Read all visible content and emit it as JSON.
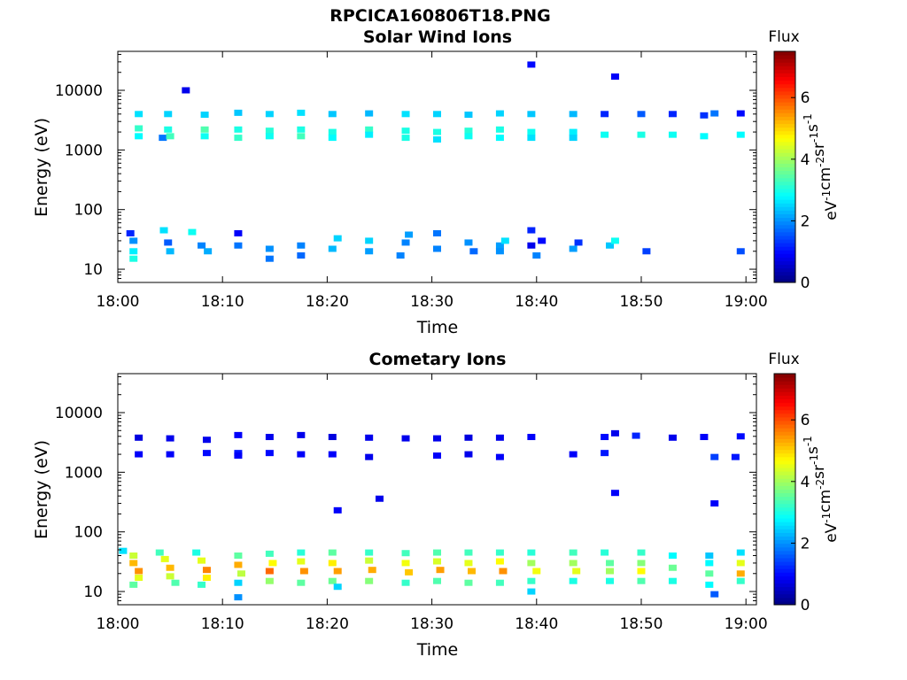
{
  "title": "RPCICA160806T18.PNG",
  "colors": {
    "axis": "#000000",
    "background": "#ffffff"
  },
  "chart_data": [
    {
      "type": "heatmap",
      "title": "Solar Wind Ions",
      "xlabel": "Time",
      "ylabel": "Energy (eV)",
      "x_ticks": [
        "18:00",
        "18:10",
        "18:20",
        "18:30",
        "18:40",
        "18:50",
        "19:00"
      ],
      "y_ticks": [
        "10",
        "100",
        "1000",
        "10000"
      ],
      "y_scale": "log",
      "xlim": [
        0,
        61
      ],
      "ylim": [
        6,
        45000
      ],
      "colorbar": {
        "title": "Flux",
        "label": "eV-1cm-2sr-1s-1",
        "ticks": [
          "0",
          "2",
          "4",
          "6"
        ],
        "range": [
          0,
          7.5
        ],
        "colormap": "jet"
      },
      "cells": [
        [
          2.0,
          4000,
          2.6
        ],
        [
          2.0,
          2300,
          3.2
        ],
        [
          2.0,
          1700,
          2.8
        ],
        [
          1.5,
          30,
          2.0
        ],
        [
          1.5,
          20,
          2.7
        ],
        [
          1.5,
          15,
          3.0
        ],
        [
          1.2,
          40,
          1.2
        ],
        [
          4.8,
          4000,
          2.5
        ],
        [
          4.8,
          2200,
          3.0
        ],
        [
          4.3,
          1600,
          1.8
        ],
        [
          5.0,
          1700,
          3.3
        ],
        [
          5.0,
          20,
          2.3
        ],
        [
          4.4,
          45,
          2.6
        ],
        [
          4.8,
          28,
          1.6
        ],
        [
          6.5,
          10000,
          0.8
        ],
        [
          8.3,
          3900,
          2.5
        ],
        [
          8.3,
          2200,
          3.4
        ],
        [
          8.3,
          1700,
          2.9
        ],
        [
          8.0,
          25,
          1.9
        ],
        [
          8.6,
          20,
          2.2
        ],
        [
          7.1,
          42,
          2.9
        ],
        [
          11.5,
          4200,
          2.4
        ],
        [
          11.5,
          2200,
          3.0
        ],
        [
          11.5,
          1600,
          3.2
        ],
        [
          11.5,
          40,
          0.9
        ],
        [
          11.5,
          25,
          1.8
        ],
        [
          14.5,
          4000,
          2.5
        ],
        [
          14.5,
          2100,
          3.1
        ],
        [
          14.5,
          1700,
          2.9
        ],
        [
          14.5,
          22,
          2.0
        ],
        [
          14.5,
          15,
          1.8
        ],
        [
          17.5,
          4200,
          2.6
        ],
        [
          17.5,
          2200,
          3.0
        ],
        [
          17.5,
          1700,
          3.3
        ],
        [
          17.5,
          25,
          1.9
        ],
        [
          17.5,
          17,
          1.7
        ],
        [
          20.5,
          4000,
          2.4
        ],
        [
          20.5,
          2000,
          3.0
        ],
        [
          20.5,
          1600,
          2.8
        ],
        [
          20.5,
          22,
          2.3
        ],
        [
          21.0,
          33,
          2.5
        ],
        [
          24.0,
          4100,
          2.3
        ],
        [
          24.0,
          2200,
          3.2
        ],
        [
          24.0,
          1800,
          2.7
        ],
        [
          24.0,
          30,
          2.5
        ],
        [
          24.0,
          20,
          2.1
        ],
        [
          27.5,
          4000,
          2.6
        ],
        [
          27.5,
          2100,
          3.0
        ],
        [
          27.5,
          1600,
          3.0
        ],
        [
          27.5,
          28,
          1.9
        ],
        [
          27.8,
          38,
          2.1
        ],
        [
          27.0,
          17,
          1.9
        ],
        [
          30.5,
          4000,
          2.5
        ],
        [
          30.5,
          2000,
          3.0
        ],
        [
          30.5,
          1500,
          2.6
        ],
        [
          30.5,
          40,
          1.8
        ],
        [
          30.5,
          22,
          1.9
        ],
        [
          33.5,
          3900,
          2.4
        ],
        [
          33.5,
          2100,
          3.1
        ],
        [
          33.5,
          1700,
          2.9
        ],
        [
          33.5,
          28,
          2.0
        ],
        [
          34.0,
          20,
          1.7
        ],
        [
          36.5,
          4100,
          2.5
        ],
        [
          36.5,
          2200,
          3.0
        ],
        [
          36.5,
          1600,
          2.8
        ],
        [
          36.5,
          25,
          2.1
        ],
        [
          37.0,
          30,
          2.6
        ],
        [
          36.5,
          20,
          2.0
        ],
        [
          39.5,
          27000,
          1.0
        ],
        [
          39.5,
          4000,
          2.4
        ],
        [
          39.5,
          2000,
          2.9
        ],
        [
          39.5,
          1600,
          2.6
        ],
        [
          39.5,
          45,
          1.2
        ],
        [
          39.5,
          25,
          0.8
        ],
        [
          40.5,
          30,
          1.0
        ],
        [
          40.0,
          17,
          1.9
        ],
        [
          43.5,
          4000,
          2.3
        ],
        [
          43.5,
          2000,
          2.7
        ],
        [
          43.5,
          1600,
          2.5
        ],
        [
          43.5,
          22,
          2.1
        ],
        [
          44.0,
          28,
          1.3
        ],
        [
          46.5,
          4000,
          1.2
        ],
        [
          46.5,
          1800,
          2.9
        ],
        [
          47.5,
          17000,
          0.9
        ],
        [
          47.0,
          25,
          2.4
        ],
        [
          47.5,
          30,
          2.9
        ],
        [
          50.0,
          4000,
          1.6
        ],
        [
          50.0,
          1800,
          3.0
        ],
        [
          50.5,
          20,
          1.4
        ],
        [
          53.0,
          4000,
          1.2
        ],
        [
          53.0,
          1800,
          2.9
        ],
        [
          56.0,
          3800,
          1.3
        ],
        [
          56.0,
          1700,
          2.8
        ],
        [
          57.0,
          4100,
          1.8
        ],
        [
          59.5,
          4100,
          1.0
        ],
        [
          59.5,
          1800,
          2.8
        ],
        [
          59.5,
          20,
          1.5
        ]
      ]
    },
    {
      "type": "heatmap",
      "title": "Cometary Ions",
      "xlabel": "Time",
      "ylabel": "Energy (eV)",
      "x_ticks": [
        "18:00",
        "18:10",
        "18:20",
        "18:30",
        "18:40",
        "18:50",
        "19:00"
      ],
      "y_ticks": [
        "10",
        "100",
        "1000",
        "10000"
      ],
      "y_scale": "log",
      "xlim": [
        0,
        61
      ],
      "ylim": [
        6,
        45000
      ],
      "colorbar": {
        "title": "Flux",
        "label": "eV-1cm-2sr-1s-1",
        "ticks": [
          "0",
          "2",
          "4",
          "6"
        ],
        "range": [
          0,
          7.5
        ],
        "colormap": "jet"
      },
      "cells": [
        [
          2.0,
          3800,
          0.7
        ],
        [
          2.0,
          2000,
          0.9
        ],
        [
          5.0,
          3700,
          0.8
        ],
        [
          5.0,
          2000,
          0.9
        ],
        [
          8.5,
          3500,
          0.8
        ],
        [
          8.5,
          2100,
          1.0
        ],
        [
          11.5,
          4200,
          0.9
        ],
        [
          11.5,
          2100,
          1.1
        ],
        [
          11.5,
          1900,
          0.9
        ],
        [
          14.5,
          3900,
          0.8
        ],
        [
          14.5,
          2100,
          1.0
        ],
        [
          17.5,
          4200,
          0.8
        ],
        [
          17.5,
          2000,
          0.9
        ],
        [
          20.5,
          3900,
          0.7
        ],
        [
          20.5,
          2000,
          0.9
        ],
        [
          24.0,
          3800,
          0.8
        ],
        [
          24.0,
          1800,
          0.8
        ],
        [
          27.5,
          3700,
          0.8
        ],
        [
          30.5,
          3700,
          0.8
        ],
        [
          30.5,
          1900,
          0.9
        ],
        [
          33.5,
          3800,
          0.7
        ],
        [
          33.5,
          2000,
          0.8
        ],
        [
          36.5,
          3800,
          0.8
        ],
        [
          36.5,
          1800,
          0.9
        ],
        [
          39.5,
          3900,
          0.9
        ],
        [
          43.5,
          2000,
          0.9
        ],
        [
          46.5,
          3900,
          1.0
        ],
        [
          46.5,
          2100,
          1.1
        ],
        [
          47.5,
          4500,
          0.8
        ],
        [
          49.5,
          4100,
          1.2
        ],
        [
          53.0,
          3800,
          0.8
        ],
        [
          56.0,
          3900,
          0.9
        ],
        [
          59.5,
          4000,
          1.0
        ],
        [
          47.5,
          450,
          0.9
        ],
        [
          57.0,
          300,
          0.9
        ],
        [
          21.0,
          230,
          0.9
        ],
        [
          25.0,
          360,
          0.8
        ],
        [
          57.0,
          1800,
          1.4
        ],
        [
          59.0,
          1800,
          1.1
        ],
        [
          0.5,
          48,
          2.6
        ],
        [
          1.5,
          40,
          4.3
        ],
        [
          1.5,
          30,
          5.2
        ],
        [
          2.0,
          22,
          5.5
        ],
        [
          2.0,
          17,
          4.5
        ],
        [
          1.5,
          13,
          3.5
        ],
        [
          4.0,
          45,
          3.3
        ],
        [
          4.5,
          35,
          4.5
        ],
        [
          5.0,
          25,
          5.2
        ],
        [
          5.0,
          18,
          4.3
        ],
        [
          5.5,
          14,
          3.4
        ],
        [
          7.5,
          45,
          3.0
        ],
        [
          8.0,
          33,
          4.5
        ],
        [
          8.5,
          23,
          5.6
        ],
        [
          8.5,
          17,
          4.8
        ],
        [
          8.0,
          13,
          3.2
        ],
        [
          11.5,
          40,
          3.5
        ],
        [
          11.5,
          28,
          5.3
        ],
        [
          11.8,
          20,
          4.2
        ],
        [
          11.5,
          14,
          2.5
        ],
        [
          11.5,
          8,
          2.0
        ],
        [
          14.5,
          43,
          3.3
        ],
        [
          14.8,
          30,
          4.7
        ],
        [
          14.5,
          22,
          5.8
        ],
        [
          14.5,
          15,
          3.9
        ],
        [
          17.5,
          45,
          3.1
        ],
        [
          17.5,
          32,
          4.5
        ],
        [
          17.8,
          22,
          5.5
        ],
        [
          17.5,
          14,
          3.5
        ],
        [
          20.5,
          45,
          3.5
        ],
        [
          20.5,
          30,
          4.8
        ],
        [
          21.0,
          22,
          5.4
        ],
        [
          20.5,
          15,
          3.6
        ],
        [
          21.0,
          12,
          2.5
        ],
        [
          24.0,
          45,
          3.2
        ],
        [
          24.0,
          33,
          4.3
        ],
        [
          24.3,
          23,
          5.3
        ],
        [
          24.0,
          15,
          3.8
        ],
        [
          27.5,
          44,
          3.3
        ],
        [
          27.5,
          30,
          4.6
        ],
        [
          27.8,
          21,
          5.1
        ],
        [
          27.5,
          14,
          3.2
        ],
        [
          30.5,
          45,
          3.4
        ],
        [
          30.5,
          32,
          4.4
        ],
        [
          30.8,
          23,
          5.4
        ],
        [
          30.5,
          15,
          3.4
        ],
        [
          33.5,
          45,
          3.3
        ],
        [
          33.5,
          30,
          4.5
        ],
        [
          33.8,
          22,
          5.2
        ],
        [
          33.5,
          14,
          3.5
        ],
        [
          36.5,
          45,
          3.2
        ],
        [
          36.5,
          32,
          4.7
        ],
        [
          36.8,
          22,
          5.5
        ],
        [
          36.5,
          14,
          3.3
        ],
        [
          39.5,
          45,
          3.1
        ],
        [
          39.5,
          30,
          4.0
        ],
        [
          40.0,
          22,
          4.6
        ],
        [
          39.5,
          15,
          3.2
        ],
        [
          39.5,
          10,
          2.5
        ],
        [
          43.5,
          45,
          3.3
        ],
        [
          43.5,
          30,
          4.0
        ],
        [
          43.8,
          22,
          4.5
        ],
        [
          43.5,
          15,
          3.0
        ],
        [
          46.5,
          45,
          3.1
        ],
        [
          47.0,
          30,
          3.5
        ],
        [
          47.0,
          22,
          4.0
        ],
        [
          47.0,
          15,
          3.0
        ],
        [
          50.0,
          45,
          3.2
        ],
        [
          50.0,
          30,
          3.8
        ],
        [
          50.0,
          22,
          4.7
        ],
        [
          50.0,
          15,
          3.4
        ],
        [
          53.0,
          40,
          2.8
        ],
        [
          53.0,
          25,
          3.6
        ],
        [
          53.0,
          15,
          3.0
        ],
        [
          56.5,
          40,
          2.4
        ],
        [
          56.5,
          30,
          2.8
        ],
        [
          56.5,
          20,
          3.5
        ],
        [
          56.5,
          13,
          2.8
        ],
        [
          57.0,
          9,
          1.6
        ],
        [
          59.5,
          45,
          2.6
        ],
        [
          59.5,
          30,
          4.5
        ],
        [
          59.5,
          20,
          5.3
        ],
        [
          59.5,
          15,
          3.2
        ]
      ]
    }
  ]
}
